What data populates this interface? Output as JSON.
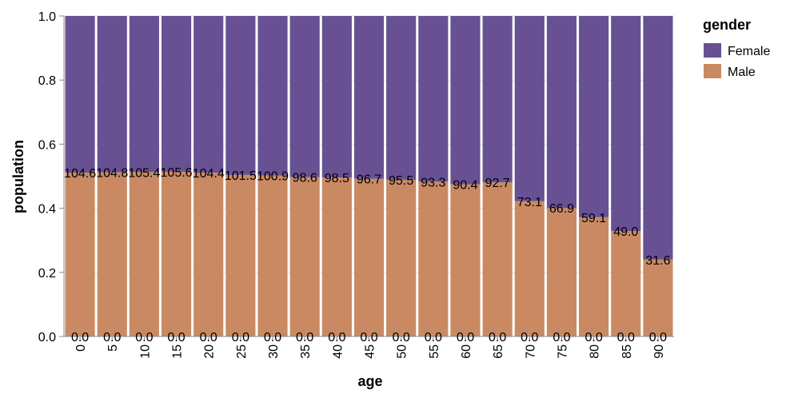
{
  "chart_data": {
    "type": "bar",
    "stacked": "normalized",
    "xlabel": "age",
    "ylabel": "population",
    "ylim": [
      0,
      1
    ],
    "yticks": [
      "0.0",
      "0.2",
      "0.4",
      "0.6",
      "0.8",
      "1.0"
    ],
    "categories": [
      "0",
      "5",
      "10",
      "15",
      "20",
      "25",
      "30",
      "35",
      "40",
      "45",
      "50",
      "55",
      "60",
      "65",
      "70",
      "75",
      "80",
      "85",
      "90"
    ],
    "legend": {
      "title": "gender",
      "position": "right"
    },
    "series": [
      {
        "name": "Male",
        "color": "#c98a63",
        "fraction": [
          0.511,
          0.512,
          0.513,
          0.514,
          0.511,
          0.504,
          0.502,
          0.497,
          0.496,
          0.492,
          0.489,
          0.483,
          0.475,
          0.481,
          0.422,
          0.401,
          0.372,
          0.329,
          0.24
        ]
      },
      {
        "name": "Female",
        "color": "#675193",
        "fraction": [
          0.489,
          0.488,
          0.487,
          0.486,
          0.489,
          0.496,
          0.498,
          0.503,
          0.504,
          0.508,
          0.511,
          0.517,
          0.525,
          0.519,
          0.578,
          0.599,
          0.628,
          0.671,
          0.76
        ]
      }
    ],
    "data_labels": {
      "top": [
        "104.6",
        "104.8",
        "105.4",
        "105.6",
        "104.4",
        "101.5",
        "100.9",
        "98.6",
        "98.5",
        "96.7",
        "95.5",
        "93.3",
        "90.4",
        "92.7",
        "73.1",
        "66.9",
        "59.1",
        "49.0",
        "31.6"
      ],
      "base": [
        "0.0",
        "0.0",
        "0.0",
        "0.0",
        "0.0",
        "0.0",
        "0.0",
        "0.0",
        "0.0",
        "0.0",
        "0.0",
        "0.0",
        "0.0",
        "0.0",
        "0.0",
        "0.0",
        "0.0",
        "0.0",
        "0.0"
      ]
    },
    "grid": true
  }
}
